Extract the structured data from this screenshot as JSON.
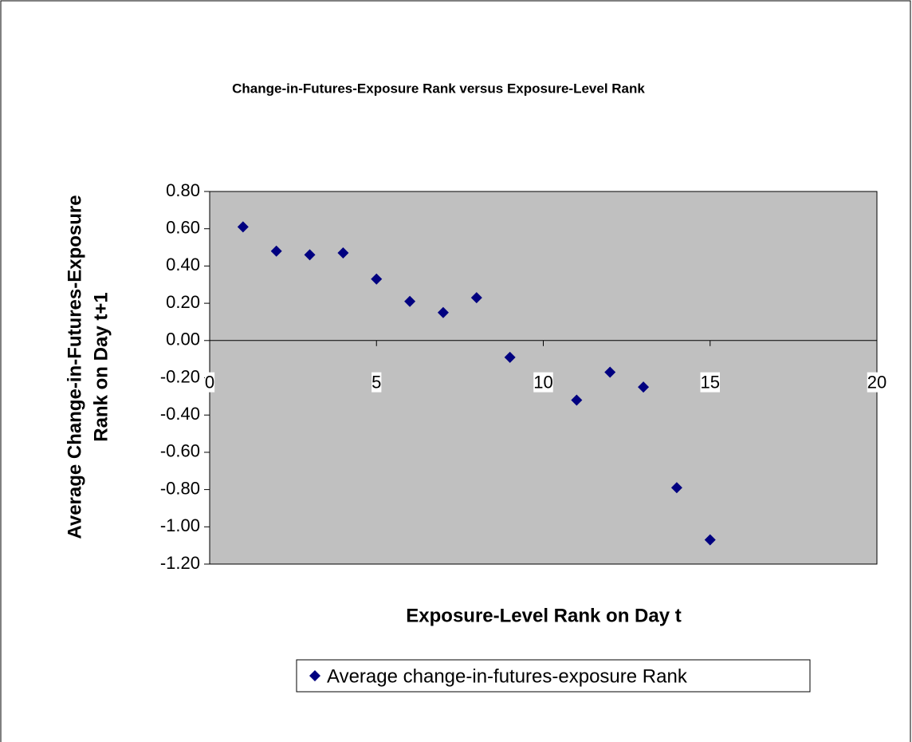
{
  "chart_data": {
    "type": "scatter",
    "title": "Change-in-Futures-Exposure Rank versus Exposure-Level Rank",
    "xlabel": "Exposure-Level Rank on Day t",
    "ylabel": [
      "Average Change-in-Futures-Exposure",
      "Rank on Day t+1"
    ],
    "series": [
      {
        "name": "Average change-in-futures-exposure Rank",
        "color": "#000080",
        "x": [
          1,
          2,
          3,
          4,
          5,
          6,
          7,
          8,
          9,
          11,
          12,
          13,
          14,
          15
        ],
        "values": [
          0.61,
          0.48,
          0.46,
          0.47,
          0.33,
          0.21,
          0.15,
          0.23,
          -0.09,
          -0.32,
          -0.17,
          -0.25,
          -0.79,
          -1.07
        ]
      }
    ],
    "xlim": [
      0,
      20
    ],
    "xticks": [
      0,
      5,
      10,
      15,
      20
    ],
    "ylim": [
      -1.2,
      0.8
    ],
    "yticks": [
      {
        "value": -1.2,
        "label": "-1.20"
      },
      {
        "value": -1.0,
        "label": "-1.00"
      },
      {
        "value": -0.8,
        "label": "-0.80"
      },
      {
        "value": -0.6,
        "label": "-0.60"
      },
      {
        "value": -0.4,
        "label": "-0.40"
      },
      {
        "value": -0.2,
        "label": "-0.20"
      },
      {
        "value": 0,
        "label": "0.00"
      },
      {
        "value": 0.2,
        "label": "0.20"
      },
      {
        "value": 0.4,
        "label": "0.40"
      },
      {
        "value": 0.6,
        "label": "0.60"
      },
      {
        "value": 0.8,
        "label": "0.80"
      }
    ],
    "plot_background": "#c0c0c0",
    "legend": "bottom"
  }
}
